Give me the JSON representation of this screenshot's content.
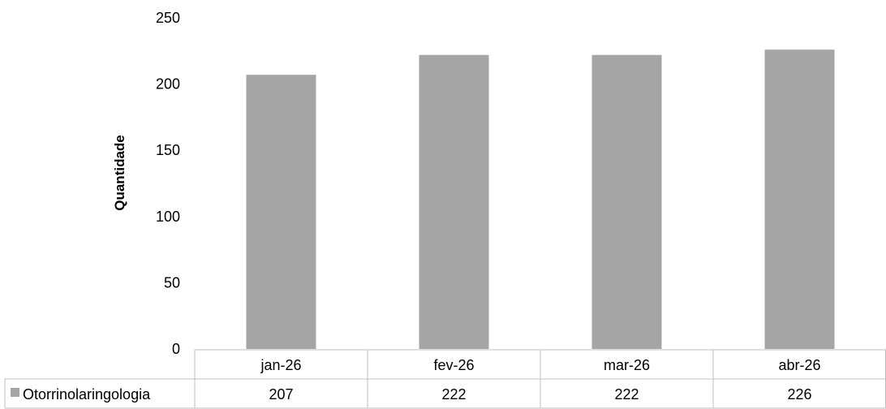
{
  "chart_data": {
    "type": "bar",
    "title": "",
    "xlabel": "",
    "ylabel": "Quantidade",
    "categories": [
      "jan-26",
      "fev-26",
      "mar-26",
      "abr-26"
    ],
    "series": [
      {
        "name": "Otorrinolaringologia",
        "values": [
          207,
          222,
          222,
          226
        ],
        "color": "#a5a5a5"
      }
    ],
    "ylim": [
      0,
      250
    ],
    "yticks": [
      0,
      50,
      100,
      150,
      200,
      250
    ],
    "grid": false,
    "legend": "data-table",
    "data_table": true
  }
}
